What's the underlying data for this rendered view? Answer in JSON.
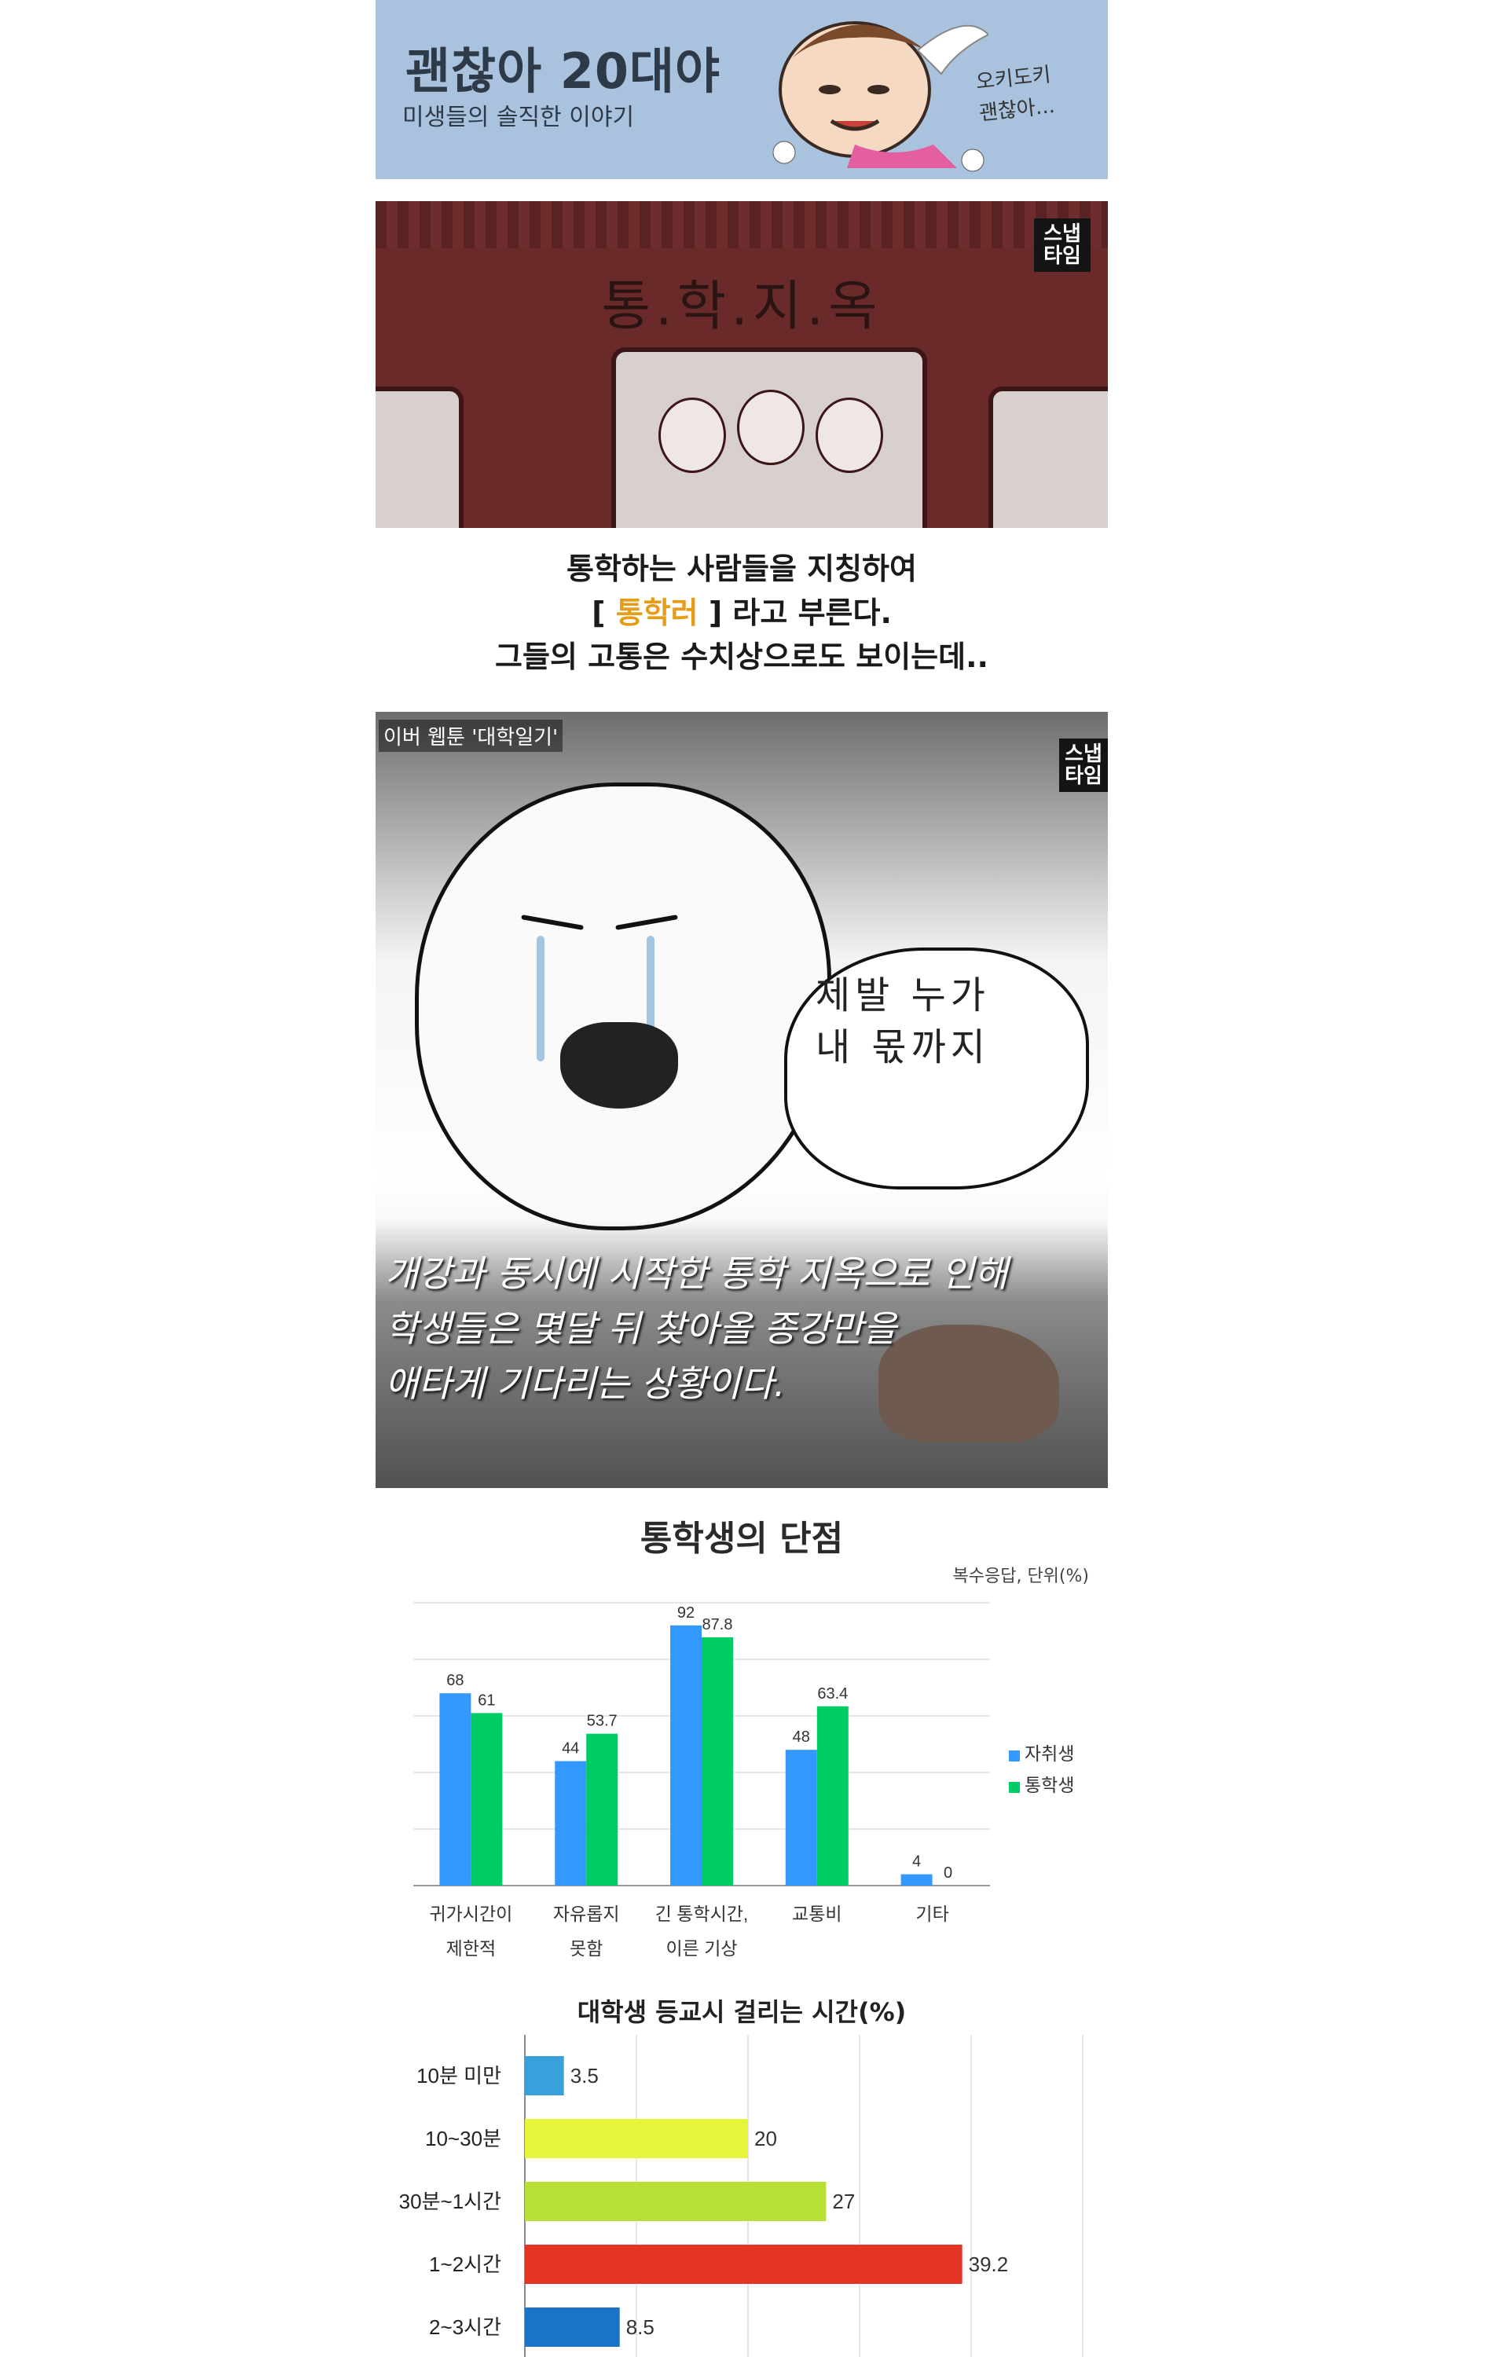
{
  "banner": {
    "title": "괜찮아 20대야",
    "subtitle": "미생들의 솔직한 이야기",
    "note_line1": "오키도키",
    "note_line2": "괜찮아..."
  },
  "panel1": {
    "title": "통.학.지.옥",
    "logo": "스냅\n타임"
  },
  "caption": {
    "line1": "통학하는 사람들을 지칭하여",
    "line2_pre": "[ ",
    "line2_hl": "통학러",
    "line2_post": " ] 라고 부른다.",
    "line3": "그들의 고통은 수치상으로도 보이는데.."
  },
  "panel2": {
    "source": "이버 웹툰 '대학일기'",
    "logo": "스냅\n타임",
    "bubble_line1": "제발 누가",
    "bubble_line2": "내 몫까지",
    "overlay_line1": "개강과 동시에 시작한 통학 지옥으로 인해",
    "overlay_line2": "학생들은 몇달 뒤 찾아올 종강만을",
    "overlay_line3": "애타게 기다리는 상황이다."
  },
  "colors": {
    "accent": "#e59c19",
    "series1": "#3399ff",
    "series2": "#00cc66",
    "bar_cyan": "#3aa0db",
    "bar_yellow": "#e6f53a",
    "bar_lime": "#b7df36",
    "bar_red": "#e33425",
    "bar_blue": "#1a73c9"
  },
  "chart_data": [
    {
      "type": "bar",
      "title": "통학생의 단점",
      "unit_note": "복수응답, 단위(%)",
      "categories": [
        [
          "귀가시간이",
          "제한적"
        ],
        [
          "자유롭지",
          "못함"
        ],
        [
          "긴 통학시간,",
          "이른 기상"
        ],
        [
          "교통비",
          ""
        ],
        [
          "기타",
          ""
        ]
      ],
      "series": [
        {
          "name": "자취생",
          "values": [
            68,
            44,
            92,
            48,
            4
          ],
          "labels": [
            "68",
            "44",
            "92",
            "48",
            "4"
          ]
        },
        {
          "name": "통학생",
          "values": [
            61,
            53.7,
            87.8,
            63.4,
            0
          ],
          "labels": [
            "61",
            "53.7",
            "87.8",
            "63.4",
            "0"
          ]
        }
      ],
      "ylim": [
        0,
        100
      ],
      "grid": true,
      "legend": "right"
    },
    {
      "type": "bar",
      "orientation": "horizontal",
      "title": "대학생 등교시 걸리는 시간(%)",
      "categories": [
        "10분 미만",
        "10~30분",
        "30분~1시간",
        "1~2시간",
        "2~3시간"
      ],
      "values": [
        3.5,
        20,
        27,
        39.2,
        8.5
      ],
      "labels": [
        "3.5",
        "20",
        "27",
        "39.2",
        "8.5"
      ],
      "xlim": [
        0,
        50
      ],
      "grid": true
    }
  ]
}
